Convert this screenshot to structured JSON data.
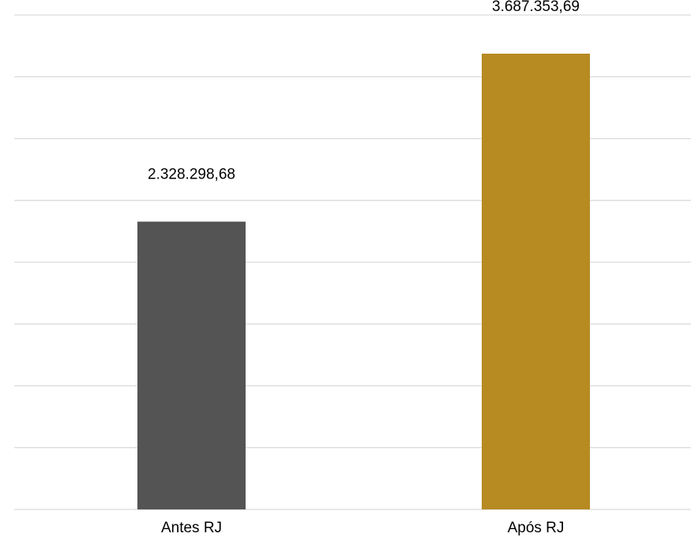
{
  "chart_data": {
    "type": "bar",
    "title": "",
    "xlabel": "",
    "ylabel": "",
    "categories": [
      "Antes RJ",
      "Após RJ"
    ],
    "values": [
      2328298.68,
      3687353.69
    ],
    "value_labels": [
      "2.328.298,68",
      "3.687.353,69"
    ],
    "bar_colors": [
      "#545454",
      "#b78a22"
    ],
    "ylim": [
      0,
      4000000
    ],
    "y_tick_step": 500000,
    "grid": true,
    "show_y_axis": false,
    "legend": "none"
  }
}
